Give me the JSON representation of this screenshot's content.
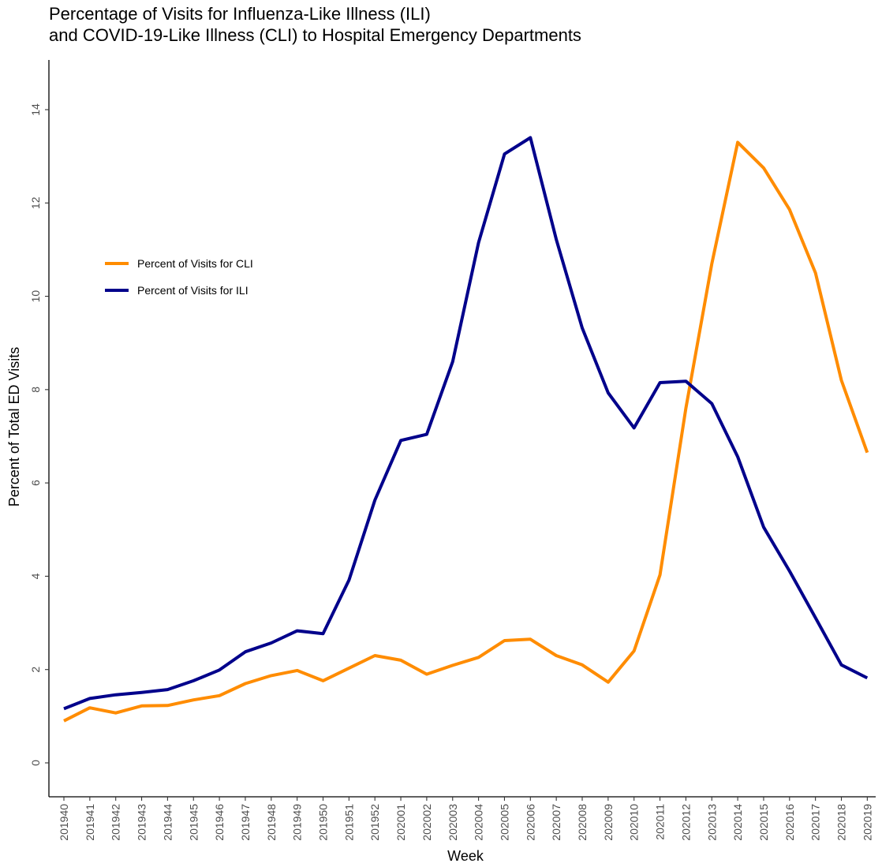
{
  "chart_data": {
    "type": "line",
    "title_lines": [
      "Percentage of Visits for Influenza-Like Illness (ILI)",
      "and COVID-19-Like Illness (CLI) to Hospital Emergency Departments"
    ],
    "xlabel": "Week",
    "ylabel": "Percent of Total ED Visits",
    "ylim": [
      0,
      14
    ],
    "yticks": [
      0,
      2,
      4,
      6,
      8,
      10,
      12,
      14
    ],
    "grid": false,
    "legend_position": "top-left",
    "categories": [
      "201940",
      "201941",
      "201942",
      "201943",
      "201944",
      "201945",
      "201946",
      "201947",
      "201948",
      "201949",
      "201950",
      "201951",
      "201952",
      "202001",
      "202002",
      "202003",
      "202004",
      "202005",
      "202006",
      "202007",
      "202008",
      "202009",
      "202010",
      "202011",
      "202012",
      "202013",
      "202014",
      "202015",
      "202016",
      "202017",
      "202018",
      "202019"
    ],
    "series": [
      {
        "name": "Percent of Visits for CLI",
        "color": "#FF8C00",
        "values": [
          0.9,
          1.18,
          1.07,
          1.22,
          1.23,
          1.35,
          1.44,
          1.7,
          1.87,
          1.98,
          1.76,
          2.03,
          2.3,
          2.2,
          1.9,
          2.09,
          2.26,
          2.62,
          2.65,
          2.3,
          2.1,
          1.73,
          2.4,
          4.03,
          7.6,
          10.7,
          13.3,
          12.75,
          11.86,
          10.5,
          8.2,
          6.65
        ]
      },
      {
        "name": "Percent of Visits for ILI",
        "color": "#00008B",
        "values": [
          1.16,
          1.38,
          1.46,
          1.51,
          1.57,
          1.76,
          1.99,
          2.38,
          2.57,
          2.83,
          2.77,
          3.92,
          5.63,
          6.91,
          7.04,
          8.6,
          11.15,
          13.05,
          13.4,
          11.22,
          9.32,
          7.93,
          7.18,
          8.15,
          8.18,
          7.7,
          6.56,
          5.05,
          4.11,
          3.11,
          2.1,
          1.82
        ]
      }
    ]
  }
}
